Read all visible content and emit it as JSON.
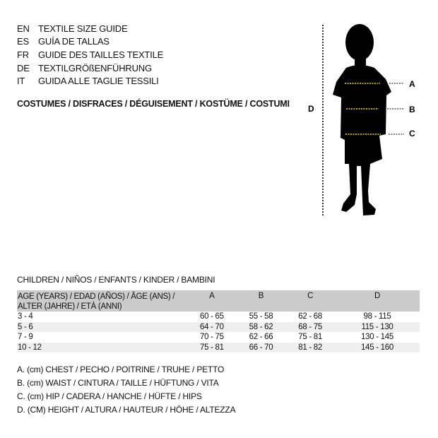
{
  "titles": [
    {
      "code": "EN",
      "text": "TEXTILE SIZE GUIDE"
    },
    {
      "code": "ES",
      "text": "GUÍA DE TALLAS"
    },
    {
      "code": "FR",
      "text": "GUIDE DES TAILLES TEXTILE"
    },
    {
      "code": "DE",
      "text": "TEXTILGRÖßENFÜHRUNG"
    },
    {
      "code": "IT",
      "text": "GUIDA ALLE TAGLIE TESSILI"
    }
  ],
  "category": "COSTUMES / DISFRACES / DÉGUISEMENT / KOSTÜME / COSTUMI",
  "figure": {
    "labels": {
      "a": "A",
      "b": "B",
      "c": "C",
      "d": "D"
    },
    "measure_line_color": "#f2e000",
    "silhouette": "child-silhouette"
  },
  "table": {
    "caption": "CHILDREN / NIÑOS / ENFANTS / KINDER / BAMBINI",
    "header_age_1": "AGE (YEARS) / EDAD (AÑOS) / ÂGE (ANS) /",
    "header_age_2": "ALTER (JAHRE) / ETÀ (ANNI)",
    "columns": [
      "A",
      "B",
      "C",
      "D"
    ],
    "rows": [
      {
        "age": "3 - 4",
        "values": [
          "60 - 65",
          "55 - 58",
          "62 - 68",
          "98 - 115"
        ]
      },
      {
        "age": "5 - 6",
        "values": [
          "64 - 70",
          "58 - 62",
          "68 - 75",
          "115 - 130"
        ]
      },
      {
        "age": "7 - 9",
        "values": [
          "70 - 75",
          "62 - 66",
          "75 - 81",
          "130 - 145"
        ]
      },
      {
        "age": "10 - 12",
        "values": [
          "75 - 81",
          "66 - 70",
          "81 - 82",
          "145 - 160"
        ]
      }
    ]
  },
  "legend": [
    "A. (cm) CHEST / PECHO / POITRINE / TRUHE / PETTO",
    "B. (cm) WAIST / CINTURA / TAILLE / HÜFTUNG / VITA",
    "C. (cm) HIP / CADERA / HANCHE / HÜFTE / HIPS",
    "D. (CM) HEIGHT / ALTURA / HAUTEUR / HÖHE / ALTEZZA"
  ]
}
